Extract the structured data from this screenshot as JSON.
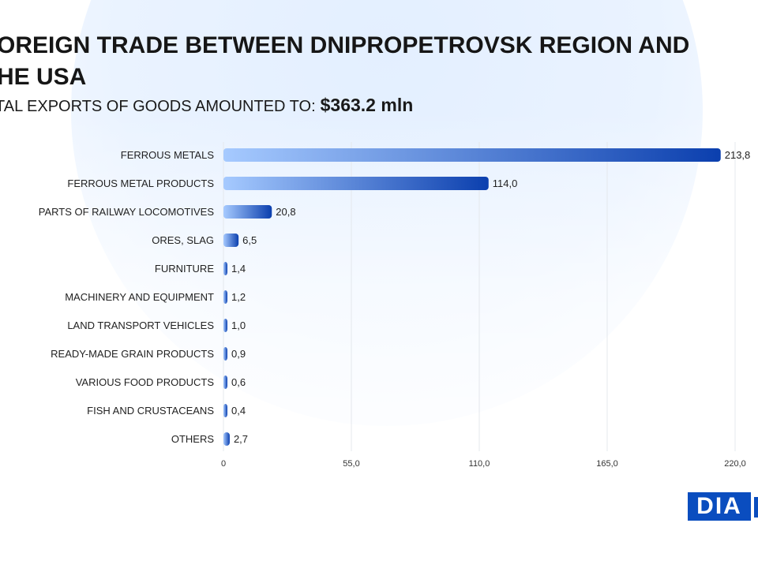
{
  "header": {
    "title": "OREIGN TRADE BETWEEN DNIPROPETROVSK REGION AND HE USA",
    "title_line1": "OREIGN TRADE BETWEEN DNIPROPETROVSK REGION AND",
    "title_line2": "HE USA",
    "subtitle": "TAL EXPORTS OF GOODS AMOUNTED TO:",
    "total": "$363.2 mln"
  },
  "logo": {
    "text": "DIA"
  },
  "chart_data": {
    "type": "bar",
    "orientation": "horizontal",
    "categories": [
      "FERROUS METALS",
      "FERROUS METAL PRODUCTS",
      "PARTS OF RAILWAY LOCOMOTIVES",
      "ORES, SLAG",
      "FURNITURE",
      "MACHINERY AND EQUIPMENT",
      "LAND TRANSPORT VEHICLES",
      "READY-MADE GRAIN PRODUCTS",
      "VARIOUS FOOD PRODUCTS",
      "FISH AND CRUSTACEANS",
      "OTHERS"
    ],
    "values": [
      213.8,
      114.0,
      20.8,
      6.5,
      1.4,
      1.2,
      1.0,
      0.9,
      0.6,
      0.4,
      2.7
    ],
    "value_labels": [
      "213,8",
      "114,0",
      "20,8",
      "6,5",
      "1,4",
      "1,2",
      "1,0",
      "0,9",
      "0,6",
      "0,4",
      "2,7"
    ],
    "xlim": [
      0,
      220
    ],
    "xticks": [
      0,
      55,
      110,
      165,
      220
    ],
    "xtick_labels": [
      "0",
      "55,0",
      "110,0",
      "165,0",
      "220,0"
    ],
    "grid": true,
    "colors": {
      "start": "#a6caff",
      "end": "#0b3fae"
    }
  }
}
